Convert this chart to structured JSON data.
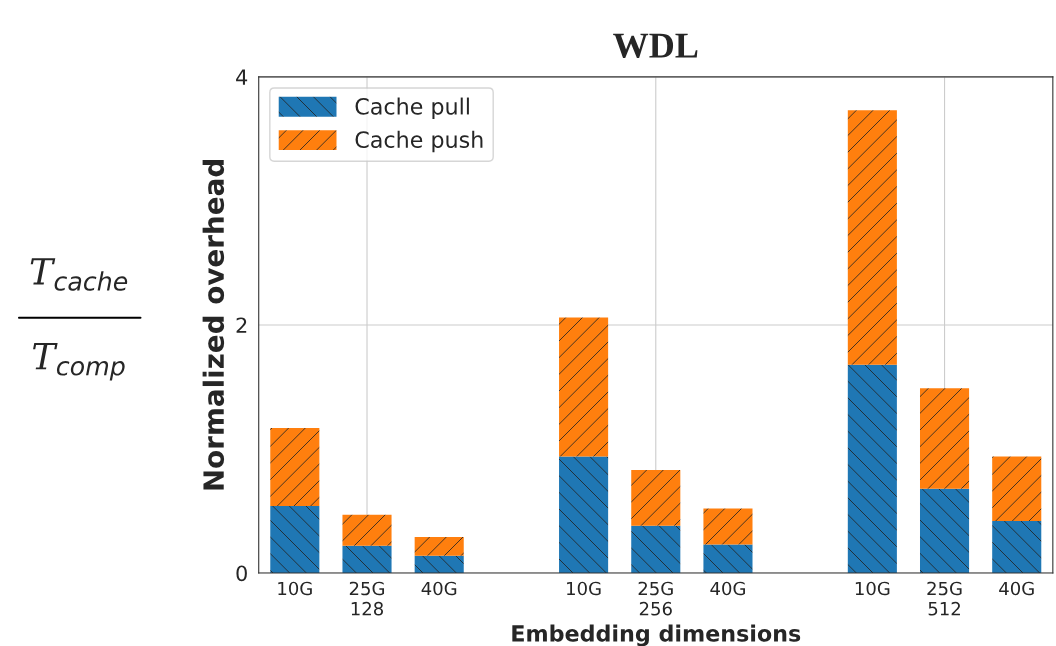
{
  "chart_data": {
    "type": "bar",
    "title": "WDL",
    "xlabel": "Embedding dimensions",
    "ylabel": "Normalized overhead",
    "annotations": [
      "T$_{cache}$",
      "T$_{comp}$"
    ],
    "categories": [
      "10G",
      "25G\n128",
      "40G",
      null,
      "10G",
      "25G\n256",
      "40G",
      null,
      "10G",
      "25G\n512",
      "40G"
    ],
    "stacked": true,
    "series": [
      {
        "name": "Cache pull",
        "color": "#1f77b4",
        "values": [
          0.54,
          0.22,
          0.14,
          null,
          0.94,
          0.38,
          0.23,
          null,
          1.68,
          0.68,
          0.42
        ]
      },
      {
        "name": "Cache push",
        "color": "#ff7f0e",
        "values": [
          0.63,
          0.25,
          0.15,
          null,
          1.12,
          0.45,
          0.29,
          null,
          2.05,
          0.81,
          0.52
        ]
      }
    ],
    "ylim": [
      0,
      4
    ],
    "yticks": [
      0,
      2,
      4
    ],
    "grid": true,
    "legend": "top left"
  }
}
